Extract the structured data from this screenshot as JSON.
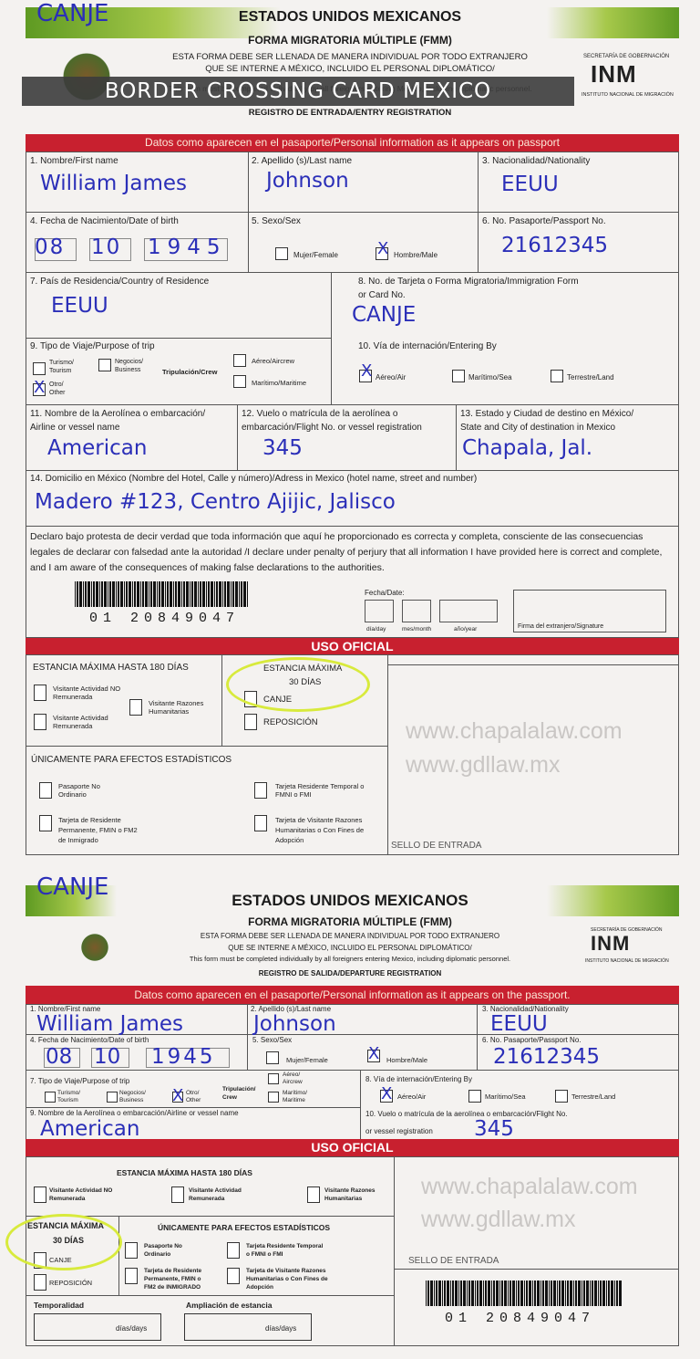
{
  "overlay_title": "BORDER CROSSING CARD MEXICO",
  "watermarks": [
    "www.chapalalaw.com",
    "www.gdllaw.mx"
  ],
  "colors": {
    "red_band": "#c8202f",
    "handwriting": "#2b2fb8",
    "highlight": "#d8ea3c",
    "green": "#5e9a22"
  },
  "entry": {
    "stamp_note": "CANJE",
    "country": "ESTADOS UNIDOS MEXICANOS",
    "form": "FORMA MIGRATORIA MÚLTIPLE (FMM)",
    "instr1": "ESTA FORMA DEBE SER LLENADA DE MANERA INDIVIDUAL POR TODO EXTRANJERO",
    "instr2": "QUE SE INTERNE A MÉXICO, INCLUIDO EL PERSONAL DIPLOMÁTICO/",
    "instr3": "This form must be completed individually by all foreigners entering Mexico, including diplomatic personnel.",
    "registration": "REGISTRO DE ENTRADA/ENTRY REGISTRATION",
    "logo_dept": "SECRETARÍA DE GOBERNACIÓN",
    "logo_text": "INM",
    "logo_sub": "INSTITUTO NACIONAL DE MIGRACIÓN",
    "seal_text": "ESTADOS UNIDOS MEXICANOS",
    "band": "Datos como aparecen en el pasaporte/Personal information as it appears on passport",
    "f1": "1. Nombre/First name",
    "v1": "William James",
    "f2": "2. Apellido (s)/Last name",
    "v2": "Johnson",
    "f3": "3. Nacionalidad/Nationality",
    "v3": "EEUU",
    "f4": "4. Fecha de Nacimiento/Date of birth",
    "dob_day": "08",
    "dob_month": "10",
    "dob_year": "1945",
    "dob_sub": [
      "day",
      "day",
      "month",
      "month",
      "year",
      "year",
      "year",
      "year"
    ],
    "f5": "5. Sexo/Sex",
    "female": "Mujer/Female",
    "male": "Hombre/Male",
    "mark": "X",
    "f6": "6. No. Pasaporte/Passport No.",
    "v6": "21612345",
    "f7": "7. País de Residencia/Country of Residence",
    "v7": "EEUU",
    "f8": "8. No. de Tarjeta o Forma Migratoria/Immigration Form",
    "f8b": "or Card No.",
    "v8": "CANJE",
    "f9": "9. Tipo de Viaje/Purpose of trip",
    "tourism": "Turismo/ Tourism",
    "business": "Negocios/ Business",
    "crew": "Tripulación/Crew",
    "aircrew": "Aéreo/Aircrew",
    "maritime_crew": "Marítimo/Maritime",
    "other": "Otro/ Other",
    "f10": "10. Vía de internación/Entering By",
    "air": "Aéreo/Air",
    "sea": "Marítimo/Sea",
    "land": "Terrestre/Land",
    "f11": "11. Nombre de la Aerolínea o embarcación/",
    "f11b": "Airline or vessel name",
    "v11": "American",
    "f12": "12. Vuelo o matrícula de la aerolínea o",
    "f12b": "embarcación/Flight No. or vessel registration",
    "v12": "345",
    "f13": "13. Estado y Ciudad de destino en México/",
    "f13b": "State and City of destination in Mexico",
    "v13": "Chapala, Jal.",
    "f14": "14. Domicilio en México (Nombre del Hotel, Calle y número)/Adress in Mexico (hotel name, street and number)",
    "v14": "Madero #123, Centro Ajijic, Jalisco",
    "declaration": "Declaro bajo protesta de decir verdad que toda información que aquí he proporcionado es correcta y completa, consciente de las consecuencias legales de declarar con falsedad ante la autoridad /I declare under penalty of perjury that all information I have provided here is correct and complete, and I am aware of the consequences of making false declarations to the authorities.",
    "barcode_number": "01 20849047",
    "date_label": "Fecha/Date:",
    "day": "día/day",
    "month": "mes/month",
    "year": "año/year",
    "signature": "Firma del extranjero/Signature",
    "official": "USO OFICIAL",
    "max180": "ESTANCIA MÁXIMA HASTA 180 DÍAS",
    "vis_no_rem": "Visitante Actividad NO Remunerada",
    "vis_rem": "Visitante Actividad Remunerada",
    "vis_hum": "Visitante Razones Humanitarias",
    "max30": "ESTANCIA MÁXIMA",
    "max30b": "30 DÍAS",
    "canje": "CANJE",
    "reposicion": "REPOSICIÓN",
    "stats": "ÚNICAMENTE PARA EFECTOS ESTADÍSTICOS",
    "pas_no": "Pasaporte No Ordinario",
    "res_temp": "Tarjeta Residente Temporal o FMNI o FMI",
    "res_perm": "Tarjeta de Residente Permanente, FMIN o FM2 de Inmigrado",
    "vis_card": "Tarjeta de Visitante Razones Humanitarias o Con Fines de Adopción",
    "stamp": "SELLO DE ENTRADA"
  },
  "departure": {
    "stamp_note": "CANJE",
    "country": "ESTADOS UNIDOS MEXICANOS",
    "form": "FORMA MIGRATORIA MÚLTIPLE (FMM)",
    "instr1": "ESTA FORMA DEBE SER LLENADA DE MANERA INDIVIDUAL POR TODO EXTRANJERO",
    "instr2": "QUE SE INTERNE A MÉXICO, INCLUIDO EL PERSONAL DIPLOMÁTICO/",
    "instr3": "This form must be completed individually by all foreigners entering Mexico, including diplomatic personnel.",
    "registration": "REGISTRO DE SALIDA/DEPARTURE REGISTRATION",
    "logo_dept": "SECRETARÍA DE GOBERNACIÓN",
    "logo_text": "INM",
    "logo_sub": "INSTITUTO NACIONAL DE MIGRACIÓN",
    "band": "Datos como aparecen en el pasaporte/Personal information as it appears on the passport.",
    "f1": "1. Nombre/First name",
    "v1": "William James",
    "f2": "2. Apellido (s)/Last name",
    "v2": "Johnson",
    "f3": "3. Nacionalidad/Nationality",
    "v3": "EEUU",
    "f4": "4. Fecha de Nacimiento/Date of birth",
    "dob_day": "08",
    "dob_month": "10",
    "dob_year": "1945",
    "f5": "5. Sexo/Sex",
    "female": "Mujer/Female",
    "male": "Hombre/Male",
    "mark": "X",
    "f6": "6. No. Pasaporte/Passport No.",
    "v6": "21612345",
    "f7": "7. Tipo de Viaje/Purpose of trip",
    "tourism": "Turismo/ Tourism",
    "business": "Negocios/ Business",
    "other": "Otro/ Other",
    "crew": "Tripulación/ Crew",
    "aircrew": "Aéreo/ Aircrew",
    "maritime_crew": "Marítimo/ Maritime",
    "f8": "8. Vía de internación/Entering By",
    "air": "Aéreo/Air",
    "sea": "Marítimo/Sea",
    "land": "Terrestre/Land",
    "f9": "9. Nombre de la Aerolínea o embarcación/Airline or vessel name",
    "v9": "American",
    "f10": "10. Vuelo o matrícula de la aerolínea o embarcación/Flight No.",
    "f10b": "or vessel registration",
    "v10": "345",
    "official": "USO OFICIAL",
    "max180": "ESTANCIA MÁXIMA HASTA 180 DÍAS",
    "vis_no_rem": "Visitante Actividad NO Remunerada",
    "vis_rem": "Visitante Actividad Remunerada",
    "vis_hum": "Visitante Razones Humanitarias",
    "max30": "ESTANCIA MÁXIMA",
    "max30b": "30 DÍAS",
    "canje": "CANJE",
    "reposicion": "REPOSICIÓN",
    "stats": "ÚNICAMENTE PARA EFECTOS ESTADÍSTICOS",
    "pas_no": "Pasaporte No Ordinario",
    "res_temp": "Tarjeta Residente Temporal o FMNI o FMI",
    "res_perm": "Tarjeta de Residente Permanente, FMIN o FM2 de INMIGRADO",
    "vis_card": "Tarjeta de Visitante Razones Humanitarias o Con Fines de Adopción",
    "temporalidad": "Temporalidad",
    "ampliacion": "Ampliación de estancia",
    "days": "días/days",
    "stamp": "SELLO DE ENTRADA",
    "barcode_number": "01 20849047"
  }
}
